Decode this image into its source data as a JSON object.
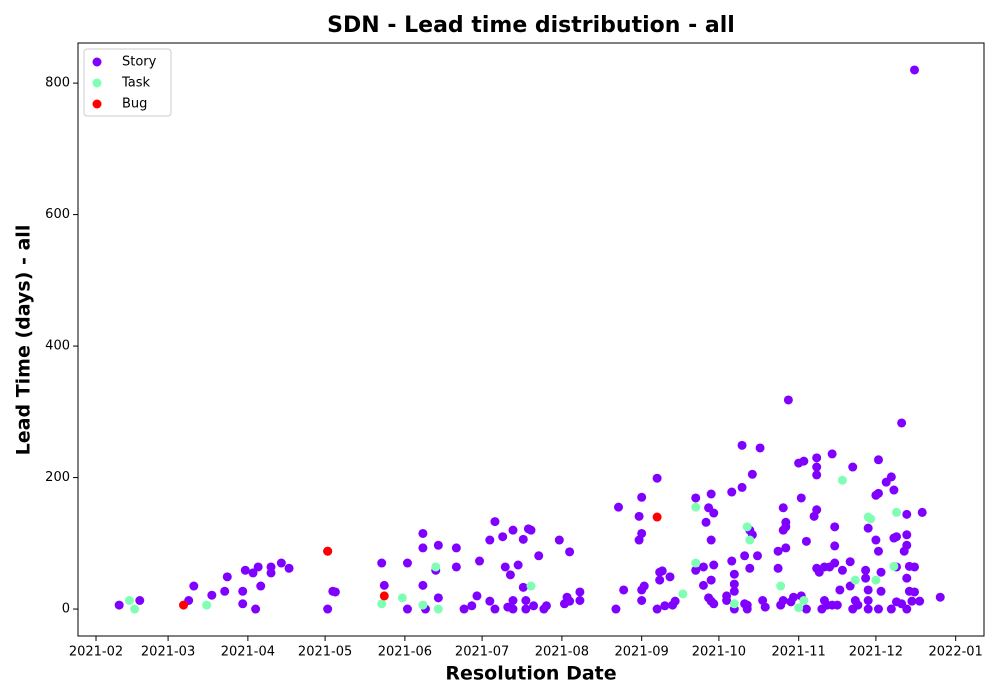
{
  "chart_data": {
    "type": "scatter",
    "title": "SDN - Lead time distribution - all",
    "x_label": "Resolution Date",
    "y_label": "Lead Time (days) - all",
    "xlim": [
      "2021-01-25",
      "2022-01-12"
    ],
    "ylim": [
      -41,
      861
    ],
    "xticks": [
      {
        "value": "2021-02-01",
        "label": "2021-02"
      },
      {
        "value": "2021-03-01",
        "label": "2021-03"
      },
      {
        "value": "2021-04-01",
        "label": "2021-04"
      },
      {
        "value": "2021-05-01",
        "label": "2021-05"
      },
      {
        "value": "2021-06-01",
        "label": "2021-06"
      },
      {
        "value": "2021-07-01",
        "label": "2021-07"
      },
      {
        "value": "2021-08-01",
        "label": "2021-08"
      },
      {
        "value": "2021-09-01",
        "label": "2021-09"
      },
      {
        "value": "2021-10-01",
        "label": "2021-10"
      },
      {
        "value": "2021-11-01",
        "label": "2021-11"
      },
      {
        "value": "2021-12-01",
        "label": "2021-12"
      },
      {
        "value": "2022-01-01",
        "label": "2022-01"
      }
    ],
    "yticks": [
      0,
      200,
      400,
      600,
      800
    ],
    "grid": false,
    "legend": "upper left",
    "series": [
      {
        "name": "Story",
        "color": "#8000ff",
        "x": [
          "2021-02-10",
          "2021-02-18",
          "2021-03-09",
          "2021-03-11",
          "2021-03-18",
          "2021-03-23",
          "2021-03-24",
          "2021-03-30",
          "2021-03-30",
          "2021-03-31",
          "2021-04-03",
          "2021-04-04",
          "2021-04-05",
          "2021-04-06",
          "2021-04-10",
          "2021-04-10",
          "2021-04-14",
          "2021-04-17",
          "2021-05-02",
          "2021-05-02",
          "2021-05-04",
          "2021-05-05",
          "2021-05-23",
          "2021-05-24",
          "2021-06-02",
          "2021-06-02",
          "2021-06-08",
          "2021-06-08",
          "2021-06-08",
          "2021-06-09",
          "2021-06-13",
          "2021-06-14",
          "2021-06-14",
          "2021-06-21",
          "2021-06-21",
          "2021-06-24",
          "2021-06-27",
          "2021-06-30",
          "2021-06-29",
          "2021-07-04",
          "2021-07-04",
          "2021-07-06",
          "2021-07-06",
          "2021-07-09",
          "2021-07-10",
          "2021-07-11",
          "2021-07-12",
          "2021-07-13",
          "2021-07-13",
          "2021-07-13",
          "2021-07-15",
          "2021-07-17",
          "2021-07-17",
          "2021-07-18",
          "2021-07-18",
          "2021-07-19",
          "2021-07-20",
          "2021-07-21",
          "2021-07-23",
          "2021-07-25",
          "2021-07-26",
          "2021-07-31",
          "2021-08-02",
          "2021-08-03",
          "2021-08-04",
          "2021-08-04",
          "2021-08-08",
          "2021-08-08",
          "2021-08-22",
          "2021-08-23",
          "2021-08-25",
          "2021-08-31",
          "2021-08-31",
          "2021-09-01",
          "2021-09-01",
          "2021-09-01",
          "2021-09-01",
          "2021-09-02",
          "2021-09-07",
          "2021-09-07",
          "2021-09-08",
          "2021-09-08",
          "2021-09-09",
          "2021-09-10",
          "2021-09-12",
          "2021-09-13",
          "2021-09-14",
          "2021-09-22",
          "2021-09-22",
          "2021-09-25",
          "2021-09-25",
          "2021-09-26",
          "2021-09-27",
          "2021-09-27",
          "2021-09-28",
          "2021-09-28",
          "2021-09-28",
          "2021-09-28",
          "2021-09-29",
          "2021-09-29",
          "2021-09-29",
          "2021-10-04",
          "2021-10-04",
          "2021-10-06",
          "2021-10-06",
          "2021-10-07",
          "2021-10-07",
          "2021-10-07",
          "2021-10-07",
          "2021-10-10",
          "2021-10-10",
          "2021-10-11",
          "2021-10-11",
          "2021-10-12",
          "2021-10-12",
          "2021-10-13",
          "2021-10-13",
          "2021-10-14",
          "2021-10-14",
          "2021-10-16",
          "2021-10-17",
          "2021-10-18",
          "2021-10-19",
          "2021-10-24",
          "2021-10-24",
          "2021-10-25",
          "2021-10-26",
          "2021-10-26",
          "2021-10-26",
          "2021-10-27",
          "2021-10-27",
          "2021-10-28",
          "2021-10-27",
          "2021-10-29",
          "2021-10-30",
          "2021-11-01",
          "2021-11-02",
          "2021-11-02",
          "2021-11-03",
          "2021-11-04",
          "2021-11-04",
          "2021-11-07",
          "2021-11-08",
          "2021-11-08",
          "2021-11-08",
          "2021-11-08",
          "2021-11-08",
          "2021-11-09",
          "2021-11-10",
          "2021-11-11",
          "2021-11-11",
          "2021-11-12",
          "2021-11-13",
          "2021-11-14",
          "2021-11-14",
          "2021-11-15",
          "2021-11-15",
          "2021-11-15",
          "2021-11-16",
          "2021-11-17",
          "2021-11-18",
          "2021-11-21",
          "2021-11-21",
          "2021-11-22",
          "2021-11-22",
          "2021-11-23",
          "2021-11-24",
          "2021-11-27",
          "2021-11-27",
          "2021-11-28",
          "2021-11-28",
          "2021-11-28",
          "2021-11-28",
          "2021-12-01",
          "2021-12-01",
          "2021-12-02",
          "2021-12-02",
          "2021-12-02",
          "2021-12-02",
          "2021-12-03",
          "2021-12-03",
          "2021-12-05",
          "2021-12-07",
          "2021-12-07",
          "2021-12-08",
          "2021-12-08",
          "2021-12-09",
          "2021-12-09",
          "2021-12-09",
          "2021-12-11",
          "2021-12-11",
          "2021-12-12",
          "2021-12-13",
          "2021-12-13",
          "2021-12-13",
          "2021-12-13",
          "2021-12-13",
          "2021-12-14",
          "2021-12-14",
          "2021-12-15",
          "2021-12-16",
          "2021-12-16",
          "2021-12-16",
          "2021-12-18",
          "2021-12-19",
          "2021-12-26"
        ],
        "values": [
          6,
          13,
          13,
          35,
          21,
          27,
          49,
          8,
          27,
          59,
          55,
          0,
          64,
          35,
          64,
          55,
          70,
          62,
          88,
          0,
          27,
          26,
          70,
          36,
          0,
          70,
          115,
          93,
          36,
          0,
          59,
          17,
          97,
          64,
          93,
          0,
          5,
          73,
          20,
          105,
          12,
          133,
          0,
          110,
          64,
          3,
          52,
          120,
          13,
          0,
          67,
          106,
          33,
          13,
          0,
          122,
          120,
          5,
          81,
          0,
          5,
          105,
          8,
          18,
          87,
          12,
          26,
          13,
          0,
          155,
          29,
          141,
          105,
          115,
          13,
          29,
          170,
          35,
          0,
          199,
          56,
          44,
          58,
          5,
          49,
          6,
          12,
          59,
          169,
          64,
          36,
          132,
          154,
          17,
          12,
          175,
          105,
          44,
          8,
          67,
          146,
          13,
          20,
          73,
          178,
          0,
          27,
          53,
          38,
          185,
          249,
          81,
          8,
          0,
          6,
          62,
          120,
          205,
          113,
          81,
          245,
          13,
          3,
          62,
          88,
          6,
          13,
          154,
          120,
          132,
          93,
          318,
          125,
          11,
          18,
          222,
          20,
          169,
          225,
          103,
          0,
          141,
          216,
          230,
          204,
          151,
          62,
          56,
          0,
          13,
          64,
          6,
          64,
          236,
          6,
          125,
          96,
          70,
          6,
          29,
          59,
          35,
          72,
          216,
          0,
          13,
          6,
          47,
          59,
          123,
          13,
          0,
          29,
          105,
          173,
          227,
          88,
          176,
          0,
          56,
          27,
          193,
          0,
          201,
          108,
          181,
          11,
          64,
          110,
          283,
          8,
          88,
          144,
          0,
          113,
          97,
          47,
          27,
          65,
          12,
          820,
          26,
          64,
          12,
          147,
          18
        ]
      },
      {
        "name": "Task",
        "color": "#80ffb4",
        "x": [
          "2021-02-14",
          "2021-02-16",
          "2021-03-16",
          "2021-05-23",
          "2021-05-31",
          "2021-06-08",
          "2021-06-13",
          "2021-06-14",
          "2021-07-20",
          "2021-09-17",
          "2021-09-22",
          "2021-09-22",
          "2021-10-07",
          "2021-10-12",
          "2021-10-13",
          "2021-10-25",
          "2021-11-01",
          "2021-11-03",
          "2021-11-18",
          "2021-11-23",
          "2021-11-28",
          "2021-11-29",
          "2021-12-01",
          "2021-12-08",
          "2021-12-09"
        ],
        "values": [
          13,
          0,
          6,
          8,
          17,
          6,
          64,
          0,
          35,
          23,
          70,
          155,
          8,
          125,
          105,
          35,
          2,
          13,
          196,
          44,
          140,
          137,
          44,
          65,
          147
        ]
      },
      {
        "name": "Bug",
        "color": "#ff0000",
        "x": [
          "2021-03-07",
          "2021-05-02",
          "2021-05-24",
          "2021-09-07"
        ],
        "values": [
          6,
          88,
          20,
          140
        ]
      }
    ]
  }
}
